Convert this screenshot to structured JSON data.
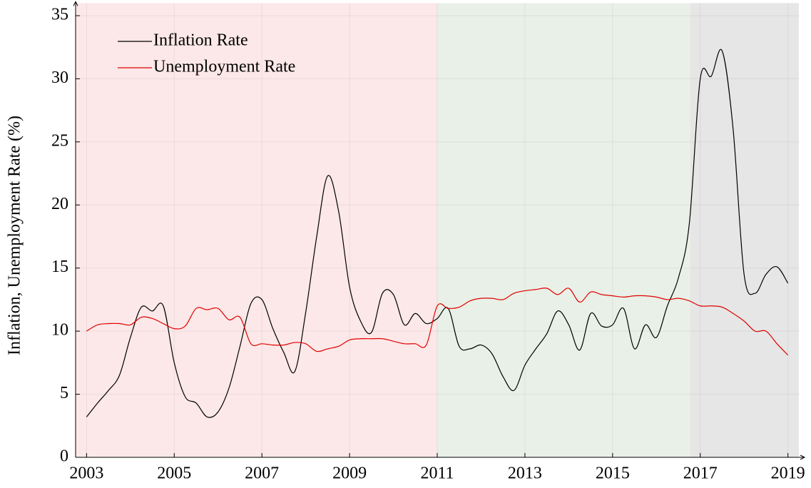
{
  "chart_data": {
    "type": "line",
    "y_label": "Inflation, Unemployment Rate (%)",
    "x": [
      2003,
      2003.25,
      2003.5,
      2003.75,
      2004,
      2004.25,
      2004.5,
      2004.75,
      2005,
      2005.25,
      2005.5,
      2005.75,
      2006,
      2006.25,
      2006.5,
      2006.75,
      2007,
      2007.25,
      2007.5,
      2007.75,
      2008,
      2008.25,
      2008.5,
      2008.75,
      2009,
      2009.25,
      2009.5,
      2009.75,
      2010,
      2010.25,
      2010.5,
      2010.75,
      2011,
      2011.25,
      2011.5,
      2011.75,
      2012,
      2012.25,
      2012.5,
      2012.75,
      2013,
      2013.25,
      2013.5,
      2013.75,
      2014,
      2014.25,
      2014.5,
      2014.75,
      2015,
      2015.25,
      2015.5,
      2015.75,
      2016,
      2016.25,
      2016.5,
      2016.75,
      2017,
      2017.25,
      2017.5,
      2017.75,
      2018,
      2018.25,
      2018.5,
      2018.75,
      2019
    ],
    "series": [
      {
        "name": "Inflation Rate",
        "color": "#000000",
        "values": [
          3.2,
          4.3,
          5.3,
          6.5,
          9.5,
          11.9,
          11.6,
          12.0,
          7.5,
          4.8,
          4.3,
          3.2,
          3.6,
          5.5,
          8.8,
          12.2,
          12.5,
          10.2,
          8.3,
          6.8,
          11.5,
          17.5,
          22.3,
          19.5,
          13.5,
          10.8,
          9.9,
          13.0,
          12.9,
          10.5,
          11.4,
          10.6,
          11.0,
          11.8,
          8.8,
          8.6,
          8.9,
          8.2,
          6.4,
          5.3,
          7.3,
          8.6,
          9.8,
          11.6,
          10.5,
          8.5,
          11.4,
          10.4,
          10.5,
          11.8,
          8.6,
          10.5,
          9.5,
          12.0,
          14.2,
          18.5,
          30.0,
          30.2,
          32.2,
          26.0,
          14.5,
          13.0,
          14.5,
          15.1,
          13.8
        ]
      },
      {
        "name": "Unemployment Rate",
        "color": "#e00000",
        "values": [
          10.0,
          10.5,
          10.6,
          10.6,
          10.5,
          11.1,
          11.0,
          10.6,
          10.2,
          10.4,
          11.8,
          11.7,
          11.8,
          10.9,
          11.1,
          9.0,
          9.0,
          8.9,
          8.9,
          9.1,
          9.0,
          8.4,
          8.6,
          8.8,
          9.3,
          9.4,
          9.4,
          9.4,
          9.2,
          9.0,
          9.0,
          8.9,
          12.0,
          11.8,
          11.9,
          12.4,
          12.6,
          12.6,
          12.5,
          13.0,
          13.2,
          13.3,
          13.4,
          12.9,
          13.4,
          12.3,
          13.1,
          12.9,
          12.8,
          12.7,
          12.8,
          12.8,
          12.7,
          12.5,
          12.6,
          12.4,
          12.0,
          12.0,
          11.9,
          11.4,
          10.8,
          10.0,
          10.0,
          9.0,
          8.1
        ]
      }
    ],
    "regions": [
      {
        "start": 2002.75,
        "end": 2011,
        "color": "#fce8e8"
      },
      {
        "start": 2011,
        "end": 2016.77,
        "color": "#e9f0e7"
      },
      {
        "start": 2016.77,
        "end": 2019.25,
        "color": "#e6e6e6"
      }
    ],
    "xlim": [
      2002.75,
      2019.25
    ],
    "xticks": [
      2003,
      2005,
      2007,
      2009,
      2011,
      2013,
      2015,
      2017,
      2019
    ],
    "ylim": [
      0,
      36
    ],
    "yticks": [
      0,
      5,
      10,
      15,
      20,
      25,
      30,
      35
    ],
    "grid": true,
    "legend": "upper left"
  }
}
